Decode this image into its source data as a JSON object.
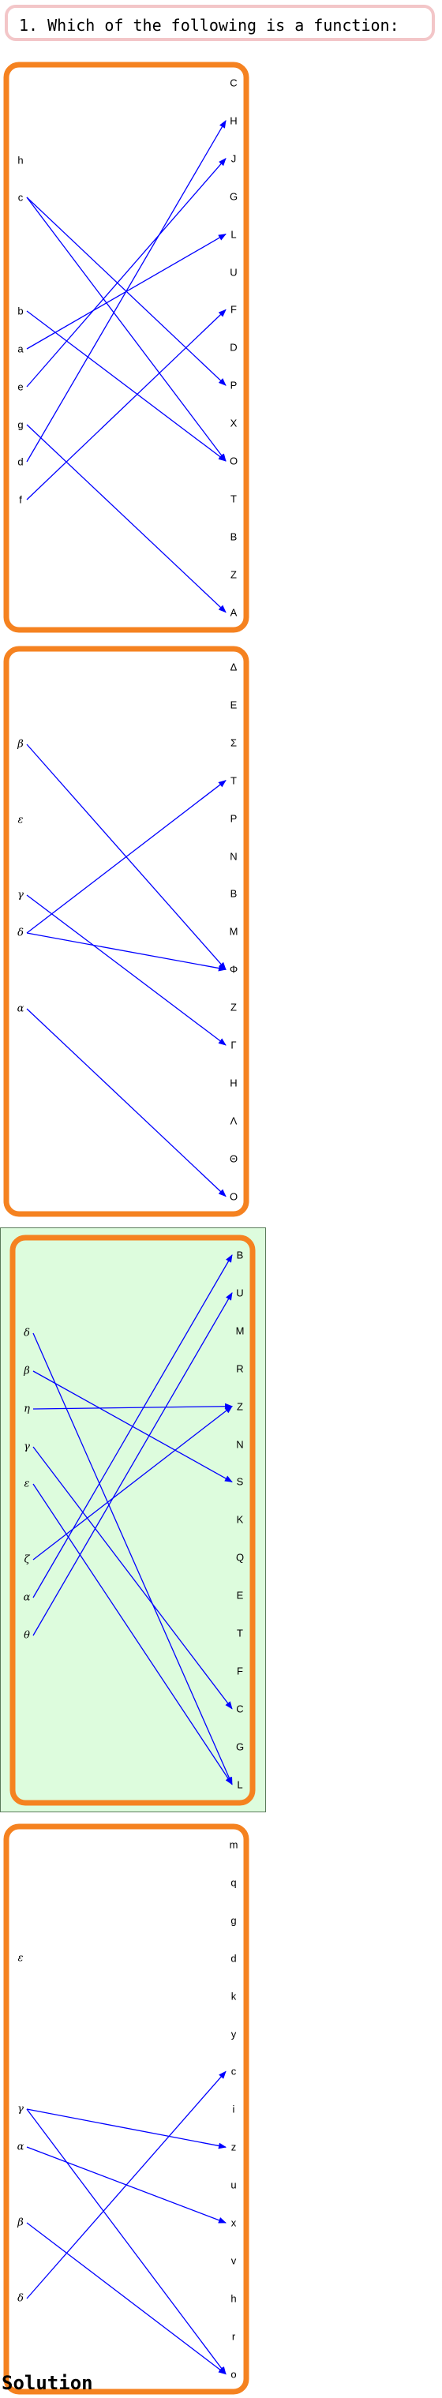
{
  "question": {
    "text": "1. Which of the following is a function:"
  },
  "solution_label": "Solution",
  "colors": {
    "frame": "#f58220",
    "arrow": "#0000ff",
    "highlight_bg": "#ddfcdd",
    "question_border": "#f3c6c8"
  },
  "options": [
    {
      "id": "option-1",
      "highlighted": false,
      "domain": [
        "h",
        "c",
        "b",
        "a",
        "e",
        "g",
        "d",
        "f"
      ],
      "codomain": [
        "C",
        "H",
        "J",
        "G",
        "L",
        "U",
        "F",
        "D",
        "P",
        "X",
        "O",
        "T",
        "B",
        "Z",
        "A"
      ],
      "mappings": [
        [
          "c",
          "P"
        ],
        [
          "c",
          "O"
        ],
        [
          "b",
          "O"
        ],
        [
          "a",
          "L"
        ],
        [
          "e",
          "J"
        ],
        [
          "g",
          "A"
        ],
        [
          "d",
          "H"
        ],
        [
          "f",
          "F"
        ]
      ]
    },
    {
      "id": "option-2",
      "highlighted": false,
      "domain": [
        "β",
        "ε",
        "γ",
        "δ",
        "α"
      ],
      "codomain": [
        "Δ",
        "E",
        "Σ",
        "T",
        "P",
        "N",
        "B",
        "M",
        "Φ",
        "Z",
        "Γ",
        "H",
        "Λ",
        "Θ",
        "O"
      ],
      "mappings": [
        [
          "β",
          "Φ"
        ],
        [
          "γ",
          "Γ"
        ],
        [
          "δ",
          "T"
        ],
        [
          "δ",
          "Φ"
        ],
        [
          "α",
          "O"
        ]
      ]
    },
    {
      "id": "option-3",
      "highlighted": true,
      "domain": [
        "δ",
        "β",
        "η",
        "γ",
        "ε",
        "ζ",
        "α",
        "θ"
      ],
      "codomain": [
        "B",
        "U",
        "M",
        "R",
        "Z",
        "N",
        "S",
        "K",
        "Q",
        "E",
        "T",
        "F",
        "C",
        "G",
        "L"
      ],
      "mappings": [
        [
          "δ",
          "L"
        ],
        [
          "β",
          "S"
        ],
        [
          "η",
          "Z"
        ],
        [
          "γ",
          "C"
        ],
        [
          "ε",
          "L"
        ],
        [
          "ζ",
          "Z"
        ],
        [
          "α",
          "B"
        ],
        [
          "θ",
          "U"
        ]
      ]
    },
    {
      "id": "option-4",
      "highlighted": false,
      "domain": [
        "ε",
        "γ",
        "α",
        "β",
        "δ"
      ],
      "codomain": [
        "m",
        "q",
        "g",
        "d",
        "k",
        "y",
        "c",
        "i",
        "z",
        "u",
        "x",
        "v",
        "h",
        "r",
        "o"
      ],
      "mappings": [
        [
          "γ",
          "z"
        ],
        [
          "γ",
          "o"
        ],
        [
          "α",
          "x"
        ],
        [
          "β",
          "o"
        ],
        [
          "δ",
          "c"
        ]
      ]
    }
  ]
}
